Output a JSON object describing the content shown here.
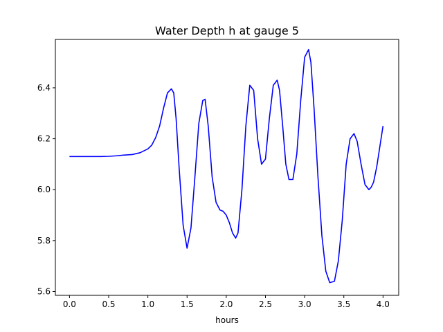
{
  "chart_data": {
    "type": "line",
    "title": "Water Depth h at gauge 5",
    "xlabel": "hours",
    "ylabel": "",
    "xlim": [
      -0.18,
      4.2
    ],
    "ylim": [
      5.585,
      6.59
    ],
    "grid": false,
    "xticks": [
      0.0,
      0.5,
      1.0,
      1.5,
      2.0,
      2.5,
      3.0,
      3.5,
      4.0
    ],
    "xtick_labels": [
      "0.0",
      "0.5",
      "1.0",
      "1.5",
      "2.0",
      "2.5",
      "3.0",
      "3.5",
      "4.0"
    ],
    "yticks": [
      5.6,
      5.8,
      6.0,
      6.2,
      6.4
    ],
    "ytick_labels": [
      "5.6",
      "5.8",
      "6.0",
      "6.2",
      "6.4"
    ],
    "series": [
      {
        "color": "#0000ff",
        "x": [
          0.0,
          0.2,
          0.4,
          0.5,
          0.6,
          0.7,
          0.8,
          0.9,
          1.0,
          1.05,
          1.1,
          1.15,
          1.2,
          1.25,
          1.3,
          1.33,
          1.36,
          1.4,
          1.45,
          1.5,
          1.55,
          1.6,
          1.65,
          1.7,
          1.73,
          1.77,
          1.82,
          1.87,
          1.92,
          1.96,
          2.0,
          2.04,
          2.08,
          2.12,
          2.15,
          2.2,
          2.25,
          2.3,
          2.35,
          2.4,
          2.45,
          2.5,
          2.55,
          2.6,
          2.65,
          2.68,
          2.72,
          2.76,
          2.8,
          2.85,
          2.9,
          2.95,
          3.0,
          3.05,
          3.08,
          3.12,
          3.17,
          3.22,
          3.27,
          3.32,
          3.38,
          3.43,
          3.48,
          3.53,
          3.58,
          3.63,
          3.67,
          3.72,
          3.77,
          3.82,
          3.85,
          3.88,
          3.92,
          3.96,
          4.0
        ],
        "y": [
          6.13,
          6.13,
          6.13,
          6.131,
          6.133,
          6.136,
          6.138,
          6.145,
          6.16,
          6.175,
          6.205,
          6.25,
          6.32,
          6.38,
          6.396,
          6.38,
          6.28,
          6.08,
          5.86,
          5.77,
          5.85,
          6.05,
          6.26,
          6.35,
          6.355,
          6.25,
          6.05,
          5.95,
          5.92,
          5.915,
          5.9,
          5.87,
          5.83,
          5.81,
          5.83,
          6.0,
          6.25,
          6.41,
          6.39,
          6.2,
          6.1,
          6.12,
          6.28,
          6.41,
          6.43,
          6.39,
          6.25,
          6.1,
          6.04,
          6.04,
          6.14,
          6.35,
          6.52,
          6.55,
          6.5,
          6.32,
          6.05,
          5.82,
          5.68,
          5.635,
          5.64,
          5.72,
          5.88,
          6.1,
          6.2,
          6.22,
          6.19,
          6.1,
          6.02,
          6.0,
          6.01,
          6.03,
          6.09,
          6.17,
          6.25
        ]
      }
    ]
  }
}
